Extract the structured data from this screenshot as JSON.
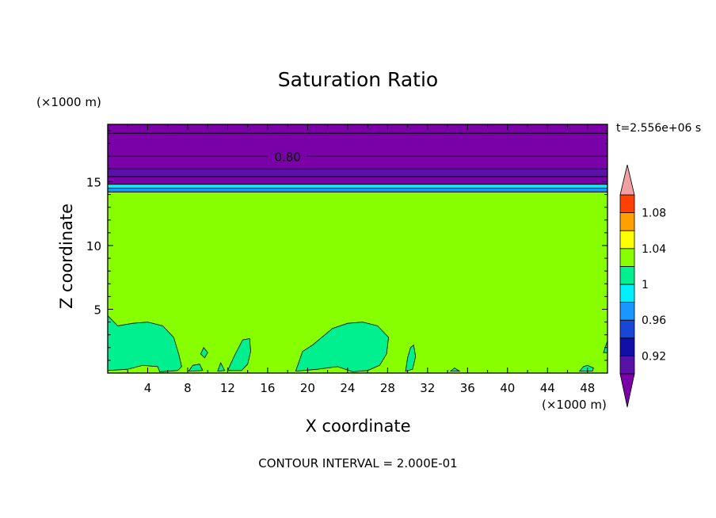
{
  "chart_data": {
    "type": "contour",
    "title": "Saturation Ratio",
    "xlabel": "X coordinate",
    "ylabel": "Z coordinate",
    "x_unit": "(×1000 m)",
    "y_unit": "(×1000 m)",
    "time_label": "t=2.556e+06 s",
    "footer": "CONTOUR INTERVAL = 2.000E-01",
    "xlim": [
      0,
      50
    ],
    "ylim": [
      0,
      19.5
    ],
    "xticks": [
      4,
      8,
      12,
      16,
      20,
      24,
      28,
      32,
      36,
      40,
      44,
      48
    ],
    "yticks": [
      5,
      10,
      15
    ],
    "contour_label": "0.80",
    "colorbar": {
      "levels": [
        0.9,
        0.92,
        0.94,
        0.96,
        0.98,
        1.0,
        1.02,
        1.04,
        1.06,
        1.08,
        1.1
      ],
      "tick_labels": [
        "0.92",
        "0.96",
        "1",
        "1.04",
        "1.08"
      ],
      "colors": [
        "#5a11a8",
        "#1010a8",
        "#1a46d8",
        "#1a96ff",
        "#00f0ff",
        "#00f090",
        "#88ff00",
        "#ffff00",
        "#ffa000",
        "#ff4000",
        "#ff1818",
        "#f0a0a0"
      ],
      "under_color": "#7a00a8",
      "over_color": "#f0a0a0"
    },
    "bands": [
      {
        "z_min": 17.0,
        "z_max": 19.5,
        "color": "#7a00a8"
      },
      {
        "z_min": 16.0,
        "z_max": 17.0,
        "color": "#7a00a8"
      },
      {
        "z_min": 15.4,
        "z_max": 16.0,
        "color": "#5a11a8"
      },
      {
        "z_min": 14.8,
        "z_max": 15.4,
        "color": "#7a00a8"
      },
      {
        "z_min": 14.5,
        "z_max": 14.8,
        "color": "#00f0ff"
      },
      {
        "z_min": 14.2,
        "z_max": 14.5,
        "color": "#1a96ff"
      },
      {
        "z_min": 0.0,
        "z_max": 14.2,
        "color": "#88ff00"
      }
    ],
    "contour_lines_z": [
      18.8,
      17.0,
      16.0,
      15.4,
      14.8,
      14.5,
      14.2
    ],
    "low_regions": [
      [
        [
          0,
          4.5
        ],
        [
          1,
          3.7
        ],
        [
          2.5,
          3.9
        ],
        [
          4,
          4.0
        ],
        [
          5.5,
          3.7
        ],
        [
          6.6,
          2.8
        ],
        [
          7.1,
          1.5
        ],
        [
          7.4,
          0.5
        ],
        [
          7.0,
          0.2
        ],
        [
          5.2,
          0.1
        ],
        [
          5.0,
          0.5
        ],
        [
          3.5,
          0.6
        ],
        [
          2.0,
          0.3
        ],
        [
          0,
          0.2
        ]
      ],
      [
        [
          8.1,
          0.15
        ],
        [
          8.5,
          0.6
        ],
        [
          9.2,
          0.7
        ],
        [
          9.5,
          0.2
        ]
      ],
      [
        [
          9.3,
          1.5
        ],
        [
          9.6,
          2.0
        ],
        [
          10.0,
          1.6
        ],
        [
          9.7,
          1.2
        ]
      ],
      [
        [
          12.0,
          0.2
        ],
        [
          12.7,
          1.4
        ],
        [
          13.5,
          2.6
        ],
        [
          14.2,
          2.7
        ],
        [
          14.3,
          1.7
        ],
        [
          14.0,
          0.7
        ],
        [
          13.4,
          0.2
        ]
      ],
      [
        [
          11.0,
          0.15
        ],
        [
          11.3,
          0.8
        ],
        [
          11.7,
          0.2
        ]
      ],
      [
        [
          18.8,
          0.15
        ],
        [
          19.5,
          1.7
        ],
        [
          20.5,
          2.2
        ],
        [
          22.5,
          3.5
        ],
        [
          24.0,
          3.9
        ],
        [
          25.5,
          4.0
        ],
        [
          27.0,
          3.7
        ],
        [
          28.1,
          2.8
        ],
        [
          27.9,
          1.5
        ],
        [
          27.2,
          0.6
        ],
        [
          26.0,
          0.2
        ],
        [
          24.5,
          0.1
        ],
        [
          23.0,
          0.5
        ],
        [
          21.0,
          0.3
        ]
      ],
      [
        [
          29.8,
          0.15
        ],
        [
          30.0,
          1.2
        ],
        [
          30.3,
          2.0
        ],
        [
          30.6,
          2.2
        ],
        [
          30.8,
          1.3
        ],
        [
          30.5,
          0.3
        ]
      ],
      [
        [
          34.3,
          0.15
        ],
        [
          34.7,
          0.4
        ],
        [
          35.2,
          0.15
        ]
      ],
      [
        [
          47.2,
          0.15
        ],
        [
          47.6,
          0.5
        ],
        [
          48.0,
          0.6
        ],
        [
          48.6,
          0.4
        ],
        [
          48.5,
          0.15
        ]
      ],
      [
        [
          49.6,
          1.6
        ],
        [
          49.9,
          2.3
        ],
        [
          50.0,
          2.5
        ],
        [
          50.0,
          1.6
        ]
      ]
    ]
  }
}
